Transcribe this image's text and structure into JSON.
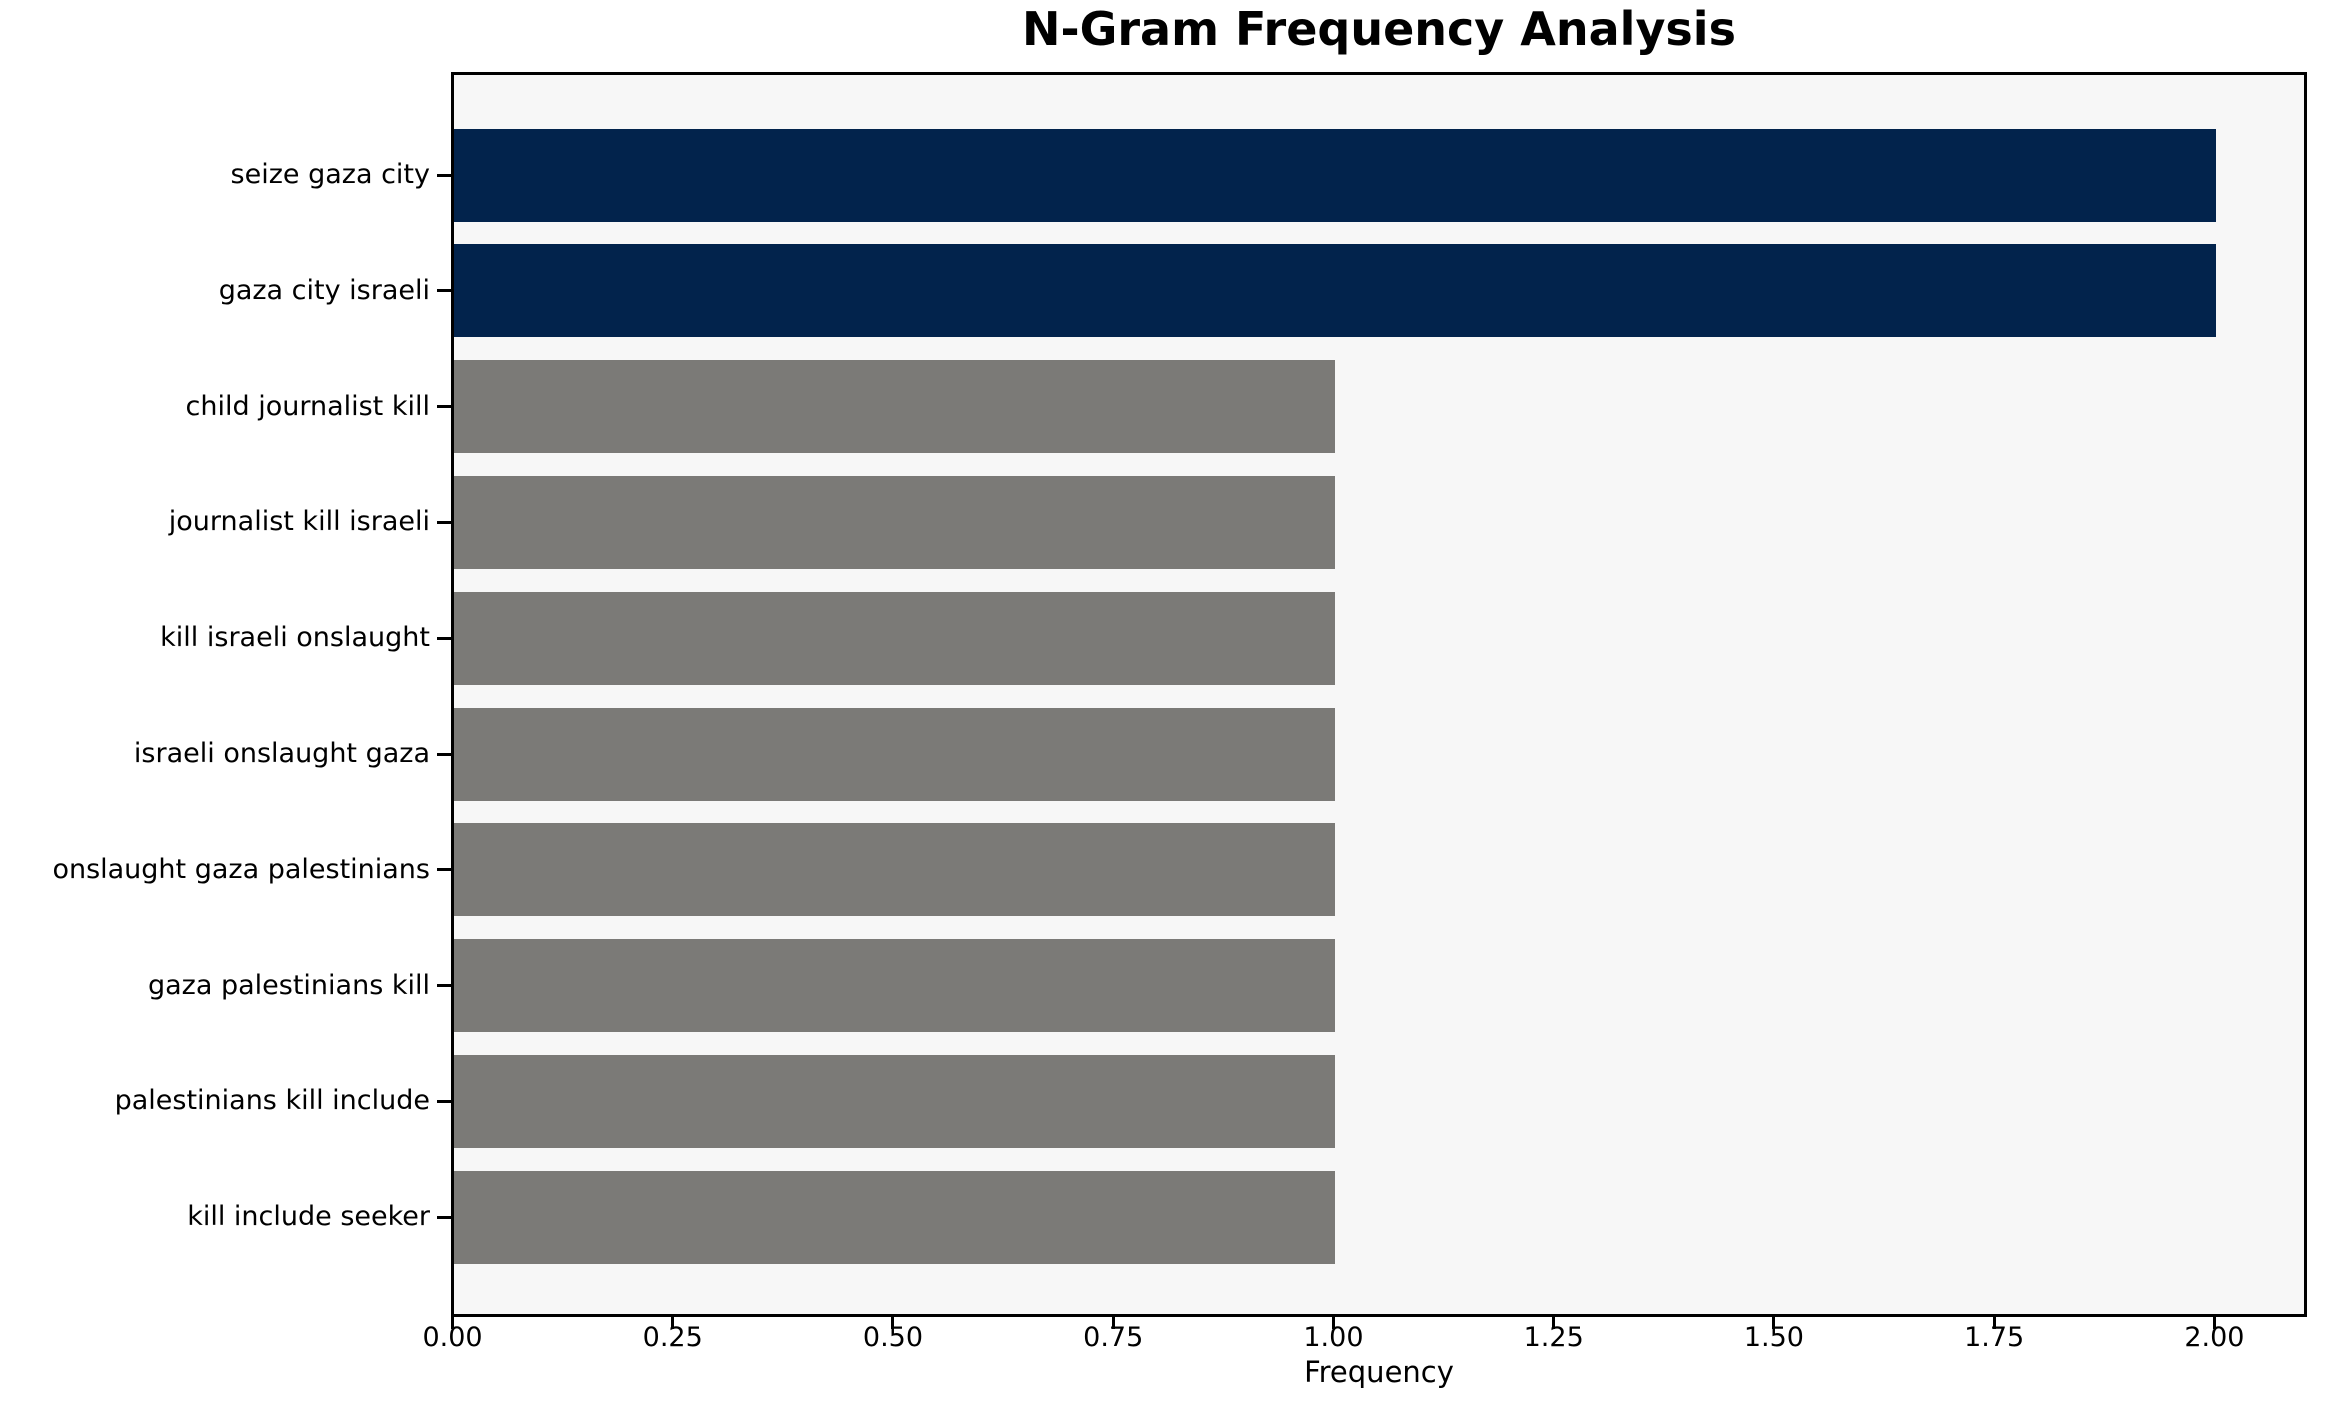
{
  "chart_data": {
    "type": "bar",
    "orientation": "horizontal",
    "title": "N-Gram Frequency Analysis",
    "xlabel": "Frequency",
    "ylabel": "",
    "categories": [
      "seize gaza city",
      "gaza city israeli",
      "child journalist kill",
      "journalist kill israeli",
      "kill israeli onslaught",
      "israeli onslaught gaza",
      "onslaught gaza palestinians",
      "gaza palestinians kill",
      "palestinians kill include",
      "kill include seeker"
    ],
    "values": [
      2,
      2,
      1,
      1,
      1,
      1,
      1,
      1,
      1,
      1
    ],
    "bar_colors": [
      "#02234c",
      "#02234c",
      "#7b7a77",
      "#7b7a77",
      "#7b7a77",
      "#7b7a77",
      "#7b7a77",
      "#7b7a77",
      "#7b7a77",
      "#7b7a77"
    ],
    "xlim": [
      0,
      2.1
    ],
    "x_ticks": [
      {
        "value": 0.0,
        "label": "0.00"
      },
      {
        "value": 0.25,
        "label": "0.25"
      },
      {
        "value": 0.5,
        "label": "0.50"
      },
      {
        "value": 0.75,
        "label": "0.75"
      },
      {
        "value": 1.0,
        "label": "1.00"
      },
      {
        "value": 1.25,
        "label": "1.25"
      },
      {
        "value": 1.5,
        "label": "1.50"
      },
      {
        "value": 1.75,
        "label": "1.75"
      },
      {
        "value": 2.0,
        "label": "2.00"
      }
    ],
    "grid": false,
    "legend": null,
    "colors": {
      "highlight": "#02234c",
      "default": "#7b7a77",
      "plot_bg": "#f7f7f7",
      "figure_bg": "#ffffff",
      "spine": "#000000"
    }
  }
}
